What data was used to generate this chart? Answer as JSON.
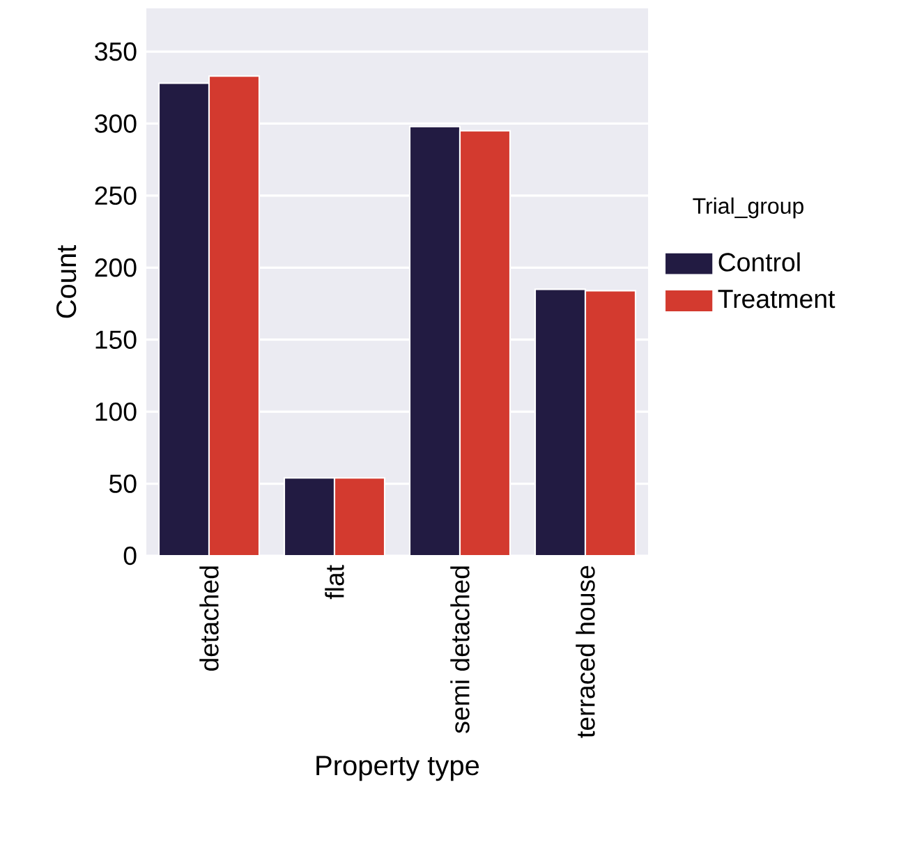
{
  "chart_data": {
    "type": "bar",
    "xlabel": "Property type",
    "ylabel": "Count",
    "legend_title": "Trial_group",
    "categories": [
      "detached",
      "flat",
      "semi detached",
      "terraced house"
    ],
    "series": [
      {
        "name": "Control",
        "color": "#221b42",
        "values": [
          328,
          54,
          298,
          185
        ]
      },
      {
        "name": "Treatment",
        "color": "#d33a2f",
        "values": [
          333,
          54,
          295,
          184
        ]
      }
    ],
    "ylim": [
      0,
      380
    ],
    "yticks": [
      0,
      50,
      100,
      150,
      200,
      250,
      300,
      350
    ],
    "grid": "y",
    "legend": "right"
  }
}
